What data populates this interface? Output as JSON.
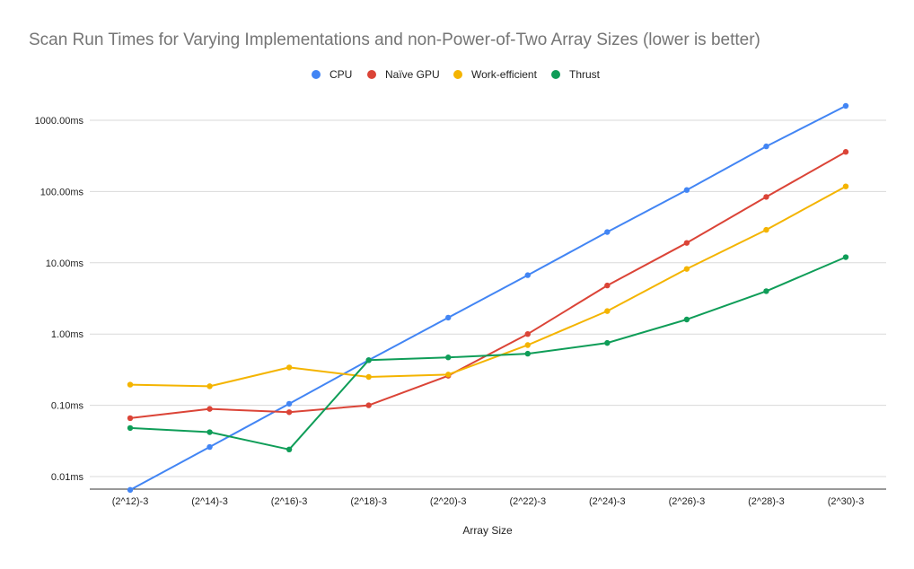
{
  "chart_data": {
    "type": "line",
    "title": "Scan Run Times for Varying Implementations and non-Power-of-Two Array Sizes (lower is better)",
    "xlabel": "Array Size",
    "ylabel": "",
    "yscale": "log",
    "ylim": [
      0.006,
      1600
    ],
    "grid": true,
    "legend_position": "top",
    "categories": [
      "(2^12)-3",
      "(2^14)-3",
      "(2^16)-3",
      "(2^18)-3",
      "(2^20)-3",
      "(2^22)-3",
      "(2^24)-3",
      "(2^26)-3",
      "(2^28)-3",
      "(2^30)-3"
    ],
    "y_ticks": [
      {
        "value": 0.01,
        "label": "0.01ms"
      },
      {
        "value": 0.1,
        "label": "0.10ms"
      },
      {
        "value": 1,
        "label": "1.00ms"
      },
      {
        "value": 10,
        "label": "10.00ms"
      },
      {
        "value": 100,
        "label": "100.00ms"
      },
      {
        "value": 1000,
        "label": "1000.00ms"
      }
    ],
    "series": [
      {
        "name": "CPU",
        "color": "#4285f4",
        "values": [
          0.0065,
          0.026,
          0.105,
          0.43,
          1.7,
          6.7,
          27,
          105,
          430,
          1600
        ]
      },
      {
        "name": "Naïve GPU",
        "color": "#db4437",
        "values": [
          0.066,
          0.089,
          0.08,
          0.1,
          0.26,
          1.0,
          4.8,
          19,
          84,
          360
        ]
      },
      {
        "name": "Work-efficient",
        "color": "#f4b400",
        "values": [
          0.195,
          0.185,
          0.34,
          0.25,
          0.27,
          0.7,
          2.1,
          8.2,
          29,
          118
        ]
      },
      {
        "name": "Thrust",
        "color": "#0f9d58",
        "values": [
          0.048,
          0.042,
          0.024,
          0.43,
          0.47,
          0.53,
          0.75,
          1.6,
          4.0,
          12
        ]
      }
    ]
  }
}
